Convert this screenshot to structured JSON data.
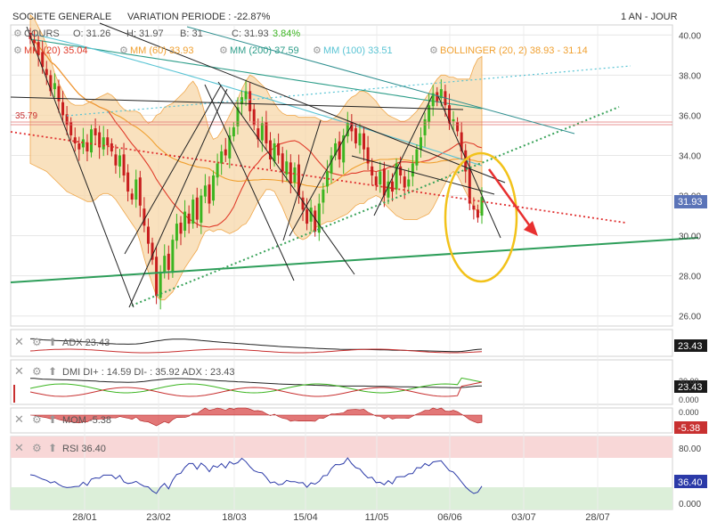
{
  "header": {
    "symbol": "SOCIETE GENERALE",
    "variation": "VARIATION PERIODE : -22.87%",
    "period": "1 AN - JOUR"
  },
  "legend": {
    "cours": "COURS",
    "ohlc": [
      "O: 31.26",
      "H: 31.97",
      "B: 31",
      "C: 31.93",
      "3.84%"
    ],
    "mm20": "MM (20) 35.04",
    "mm60": "MM (60) 33.93",
    "mm200": "MM (200) 37.59",
    "mm100": "MM (100) 33.51",
    "bollinger": "BOLLINGER (20, 2) 38.93 - 31.14"
  },
  "indicators": {
    "adx": {
      "label": "ADX 23.43",
      "badge": "23.43"
    },
    "dmi": {
      "label": "DMI DI+ : 14.59 DI- : 35.92 ADX : 23.43",
      "badge": "23.43"
    },
    "mom": {
      "label": "MOM -5.38",
      "badge": "-5.38"
    },
    "rsi": {
      "label": "RSI 36.40",
      "badge": "36.40"
    }
  },
  "colors": {
    "up": "#3cb521",
    "down": "#c81e1e",
    "mm20": "#e03b2a",
    "mm60": "#f0a030",
    "mm200": "#2e9e8a",
    "mm100": "#59c4d4",
    "bollinger_fill": "#f7d7a8",
    "bollinger_line": "#f0a74a",
    "trend_green": "#2e9e5a",
    "trend_dotted_green": "#3aa35a",
    "trend_red_dotted": "#e03030",
    "highlight_circle": "#f2c21a",
    "arrow": "#e83030"
  },
  "chart_data": {
    "type": "candlestick",
    "x_labels": [
      "28/01",
      "23/02",
      "18/03",
      "15/04",
      "11/05",
      "06/06",
      "03/07",
      "28/07"
    ],
    "y_ticks": [
      26,
      28,
      30,
      32,
      34,
      36,
      38,
      40
    ],
    "ylim": [
      25.5,
      40.5
    ],
    "price_badge": "31.93",
    "level_label": "35.79",
    "closes": [
      39.8,
      39.6,
      39.0,
      38.4,
      38.0,
      37.2,
      37.6,
      36.7,
      36.0,
      35.5,
      35.0,
      34.6,
      34.3,
      34.8,
      34.2,
      35.3,
      35.0,
      34.4,
      34.9,
      34.5,
      34.2,
      33.5,
      34.0,
      33.0,
      32.2,
      31.8,
      32.8,
      31.5,
      30.5,
      29.6,
      28.8,
      27.0,
      28.2,
      29.0,
      28.3,
      29.8,
      30.6,
      30.1,
      31.2,
      30.6,
      31.8,
      30.8,
      32.0,
      32.5,
      31.6,
      33.0,
      33.6,
      34.2,
      34.0,
      35.0,
      35.4,
      36.4,
      36.9,
      37.2,
      36.2,
      35.5,
      34.8,
      35.6,
      34.6,
      33.8,
      34.6,
      34.0,
      33.2,
      33.7,
      32.6,
      33.4,
      32.0,
      31.3,
      30.6,
      31.4,
      30.2,
      31.6,
      32.3,
      33.2,
      34.0,
      34.6,
      33.8,
      35.0,
      35.6,
      35.2,
      34.6,
      35.1,
      34.3,
      33.6,
      33.0,
      32.5,
      33.2,
      32.0,
      32.7,
      32.2,
      33.6,
      33.0,
      32.4,
      32.8,
      33.6,
      34.3,
      34.9,
      35.8,
      36.5,
      37.1,
      36.7,
      37.3,
      36.5,
      35.6,
      35.8,
      35.2,
      34.2,
      33.2,
      31.6,
      31.3,
      30.9,
      31.93
    ],
    "bollinger_upper": [
      41.0,
      40.8,
      40.4,
      40.0,
      39.5,
      38.8,
      38.1,
      37.6,
      37.2,
      36.8,
      36.6,
      36.5,
      36.5,
      36.5,
      36.6,
      36.7,
      36.8,
      36.9,
      37.0,
      37.1,
      37.0,
      36.8,
      36.5,
      36.3,
      36.2,
      36.2,
      36.2,
      36.1,
      35.8,
      35.6,
      35.7,
      36.0,
      36.1,
      36.4,
      36.5,
      36.6,
      36.8,
      37.0,
      37.2,
      37.5,
      37.7,
      37.4,
      36.8,
      36.0,
      35.2,
      34.8,
      34.9,
      35.2,
      35.6,
      36.0,
      36.4,
      36.8,
      37.3,
      37.7,
      38.0,
      37.9,
      37.7,
      37.5,
      37.3,
      36.9,
      36.6,
      36.3,
      36.1,
      36.0,
      36.0,
      36.0,
      35.9,
      35.9,
      35.9,
      35.9,
      35.9,
      35.8,
      35.7,
      35.7,
      35.8,
      35.9,
      36.1,
      36.4,
      36.7,
      36.9,
      37.0,
      37.2,
      37.2,
      37.1,
      36.9,
      36.7,
      36.4,
      36.2,
      36.0,
      35.9,
      35.8,
      35.7,
      35.7,
      35.8,
      36.0,
      36.2,
      36.5,
      36.8,
      37.1,
      37.5,
      37.8,
      38.0,
      38.0,
      37.9,
      37.9,
      37.8,
      37.8,
      37.8,
      37.8,
      38.4,
      38.8,
      38.93
    ],
    "bollinger_lower": [
      33.6,
      33.5,
      33.4,
      33.3,
      33.2,
      33.0,
      32.8,
      32.6,
      32.4,
      32.2,
      32.1,
      32.0,
      31.9,
      31.8,
      31.7,
      31.7,
      31.8,
      32.0,
      32.1,
      32.1,
      32.0,
      31.8,
      31.5,
      31.2,
      30.9,
      30.6,
      30.3,
      29.7,
      28.9,
      28.2,
      27.6,
      27.0,
      26.8,
      26.8,
      27.0,
      27.2,
      27.6,
      28.0,
      28.4,
      28.7,
      29.0,
      29.3,
      29.8,
      30.2,
      30.3,
      30.2,
      30.3,
      30.3,
      30.2,
      30.1,
      30.2,
      30.3,
      30.5,
      30.6,
      30.9,
      31.3,
      31.7,
      32.0,
      32.3,
      32.3,
      32.2,
      31.8,
      31.4,
      30.9,
      30.5,
      30.1,
      29.9,
      29.8,
      29.9,
      30.1,
      30.4,
      30.5,
      30.6,
      30.7,
      30.7,
      30.8,
      30.9,
      31.0,
      31.1,
      31.3,
      31.5,
      31.6,
      31.6,
      31.8,
      31.9,
      32.0,
      31.9,
      31.6,
      31.4,
      31.2,
      31.0,
      30.9,
      30.8,
      30.8,
      30.8,
      30.8,
      30.9,
      31.0,
      31.1,
      31.4,
      31.8,
      32.2,
      32.6,
      33.0,
      33.2,
      33.0,
      32.6,
      32.2,
      31.8,
      31.4,
      31.2,
      31.14
    ],
    "adx": [
      34,
      34,
      33.5,
      33,
      32.8,
      32.6,
      32.4,
      32.2,
      32,
      32,
      31.8,
      31.5,
      31.2,
      31,
      30.8,
      30.5,
      30.2,
      29.8,
      29.5,
      29.2,
      29,
      28.8,
      28.7,
      28.6,
      28.5,
      28.6,
      28.8,
      29.2,
      29.8,
      30.5,
      31.2,
      31.8,
      32.4,
      33,
      33.4,
      33.6,
      33.7,
      33.7,
      33.6,
      33.4,
      33.1,
      32.8,
      32.4,
      32,
      31.6,
      31.2,
      30.8,
      30.5,
      30.2,
      29.9,
      29.6,
      29.3,
      29,
      28.7,
      28.4,
      28.1,
      27.8,
      27.5,
      27.2,
      26.9,
      26.6,
      26.3,
      26,
      25.8,
      25.6,
      25.4,
      25.2,
      25,
      24.8,
      24.6,
      24.4,
      24.2,
      24,
      23.8,
      23.6,
      23.5,
      23.4,
      23.3,
      23.2,
      23.2,
      23.2,
      23.2,
      23.2,
      23.1,
      23,
      22.9,
      22.8,
      22.7,
      22.6,
      22.5,
      22.4,
      22.3,
      22.2,
      22.1,
      22,
      21.9,
      21.8,
      21.7,
      21.6,
      21.5,
      21.4,
      21.3,
      21.2,
      21.1,
      21.0,
      21.0,
      21.2,
      21.6,
      22.2,
      22.8,
      23.2,
      23.43
    ]
  }
}
